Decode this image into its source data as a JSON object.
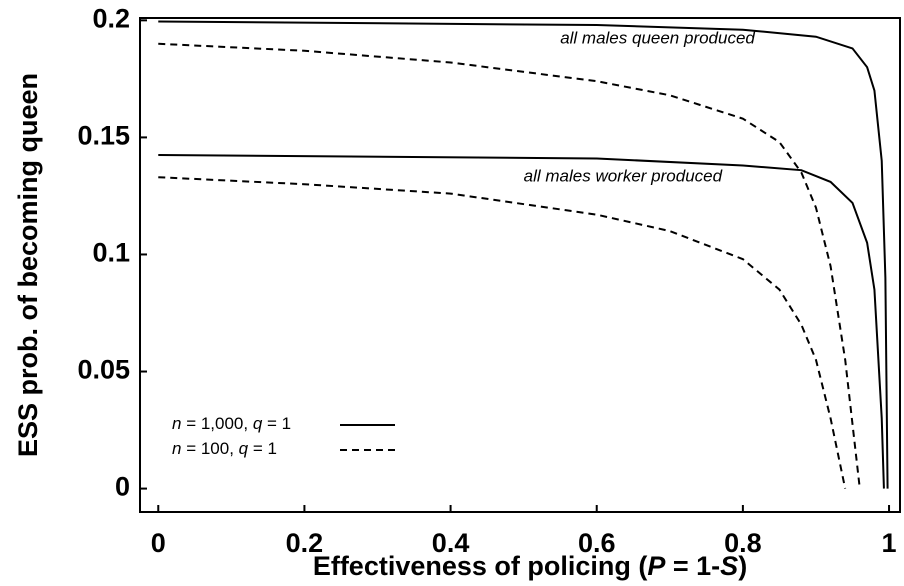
{
  "chart_data": {
    "type": "line",
    "x_label": [
      {
        "text": "Effectiveness of policing ("
      },
      {
        "text": "P",
        "italic": true
      },
      {
        "text": " = 1-"
      },
      {
        "text": "S",
        "italic": true
      },
      {
        "text": ")"
      }
    ],
    "y_label": "ESS prob. of becoming queen",
    "xlim": [
      -0.025,
      1.015
    ],
    "ylim": [
      -0.01,
      0.201
    ],
    "xticks": [
      0,
      0.2,
      0.4,
      0.6,
      0.8,
      1
    ],
    "yticks": [
      0,
      0.05,
      0.1,
      0.15,
      0.2
    ],
    "annotations": [
      {
        "text": "all males queen produced",
        "x": 0.55,
        "y": 0.192
      },
      {
        "text": "all males worker produced",
        "x": 0.5,
        "y": 0.133
      }
    ],
    "legend": [
      {
        "parts": [
          {
            "text": "n",
            "italic": true
          },
          {
            "text": " = 1,000, "
          },
          {
            "text": "q",
            "italic": true
          },
          {
            "text": " = 1"
          }
        ],
        "dash": false
      },
      {
        "parts": [
          {
            "text": "n",
            "italic": true
          },
          {
            "text": " = 100, "
          },
          {
            "text": "q",
            "italic": true
          },
          {
            "text": " = 1"
          }
        ],
        "dash": true
      }
    ],
    "series": [
      {
        "color": "#000000",
        "dash": false,
        "x": [
          0,
          0.6,
          0.8,
          0.9,
          0.95,
          0.97,
          0.98,
          0.99,
          0.995,
          0.998
        ],
        "values": [
          0.1995,
          0.198,
          0.196,
          0.193,
          0.188,
          0.18,
          0.17,
          0.14,
          0.09,
          0
        ]
      },
      {
        "color": "#000000",
        "dash": false,
        "x": [
          0,
          0.6,
          0.8,
          0.88,
          0.92,
          0.95,
          0.97,
          0.98,
          0.99,
          0.993
        ],
        "values": [
          0.1425,
          0.141,
          0.138,
          0.136,
          0.131,
          0.122,
          0.105,
          0.085,
          0.03,
          0
        ]
      },
      {
        "color": "#000000",
        "dash": true,
        "x": [
          0,
          0.2,
          0.4,
          0.6,
          0.7,
          0.8,
          0.85,
          0.88,
          0.9,
          0.92,
          0.94,
          0.96
        ],
        "values": [
          0.19,
          0.187,
          0.182,
          0.174,
          0.168,
          0.158,
          0.148,
          0.135,
          0.12,
          0.095,
          0.055,
          0
        ]
      },
      {
        "color": "#000000",
        "dash": true,
        "x": [
          0,
          0.2,
          0.4,
          0.6,
          0.7,
          0.8,
          0.85,
          0.88,
          0.9,
          0.92,
          0.94
        ],
        "values": [
          0.133,
          0.13,
          0.126,
          0.117,
          0.11,
          0.098,
          0.085,
          0.07,
          0.055,
          0.03,
          0
        ]
      }
    ]
  }
}
